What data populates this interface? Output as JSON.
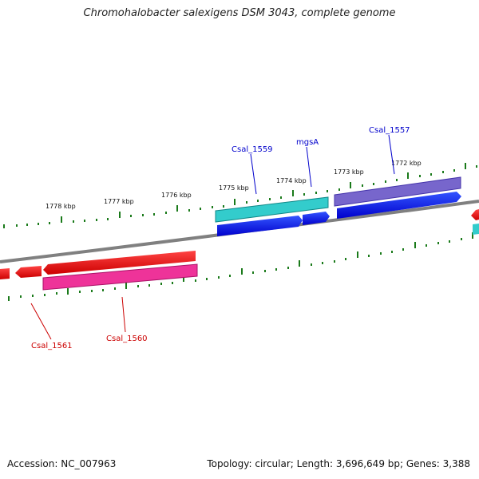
{
  "title": "Chromohalobacter salexigens DSM 3043, complete genome",
  "footer": {
    "accession": "Accession: NC_007963",
    "summary": "Topology: circular; Length: 3,696,649 bp; Genes: 3,388"
  },
  "scale_labels": [
    "1778 kbp",
    "1777 kbp",
    "1776 kbp",
    "1775 kbp",
    "1774 kbp",
    "1773 kbp",
    "1772 kbp"
  ],
  "gene_labels": [
    {
      "name": "Csal_1559",
      "color": "#0000cc"
    },
    {
      "name": "mgsA",
      "color": "#0000cc"
    },
    {
      "name": "Csal_1557",
      "color": "#0000cc"
    },
    {
      "name": "Csal_1561",
      "color": "#cc0000"
    },
    {
      "name": "Csal_1560",
      "color": "#cc0000"
    }
  ],
  "colors": {
    "backbone": "#808080",
    "tick": "#1a7a1a",
    "forward_cds": "#0000ee",
    "forward_gene_cyan": "#33cccc",
    "forward_gene_purple": "#7766cc",
    "reverse_cds": "#ee0000",
    "reverse_gene_magenta": "#ee3399"
  }
}
